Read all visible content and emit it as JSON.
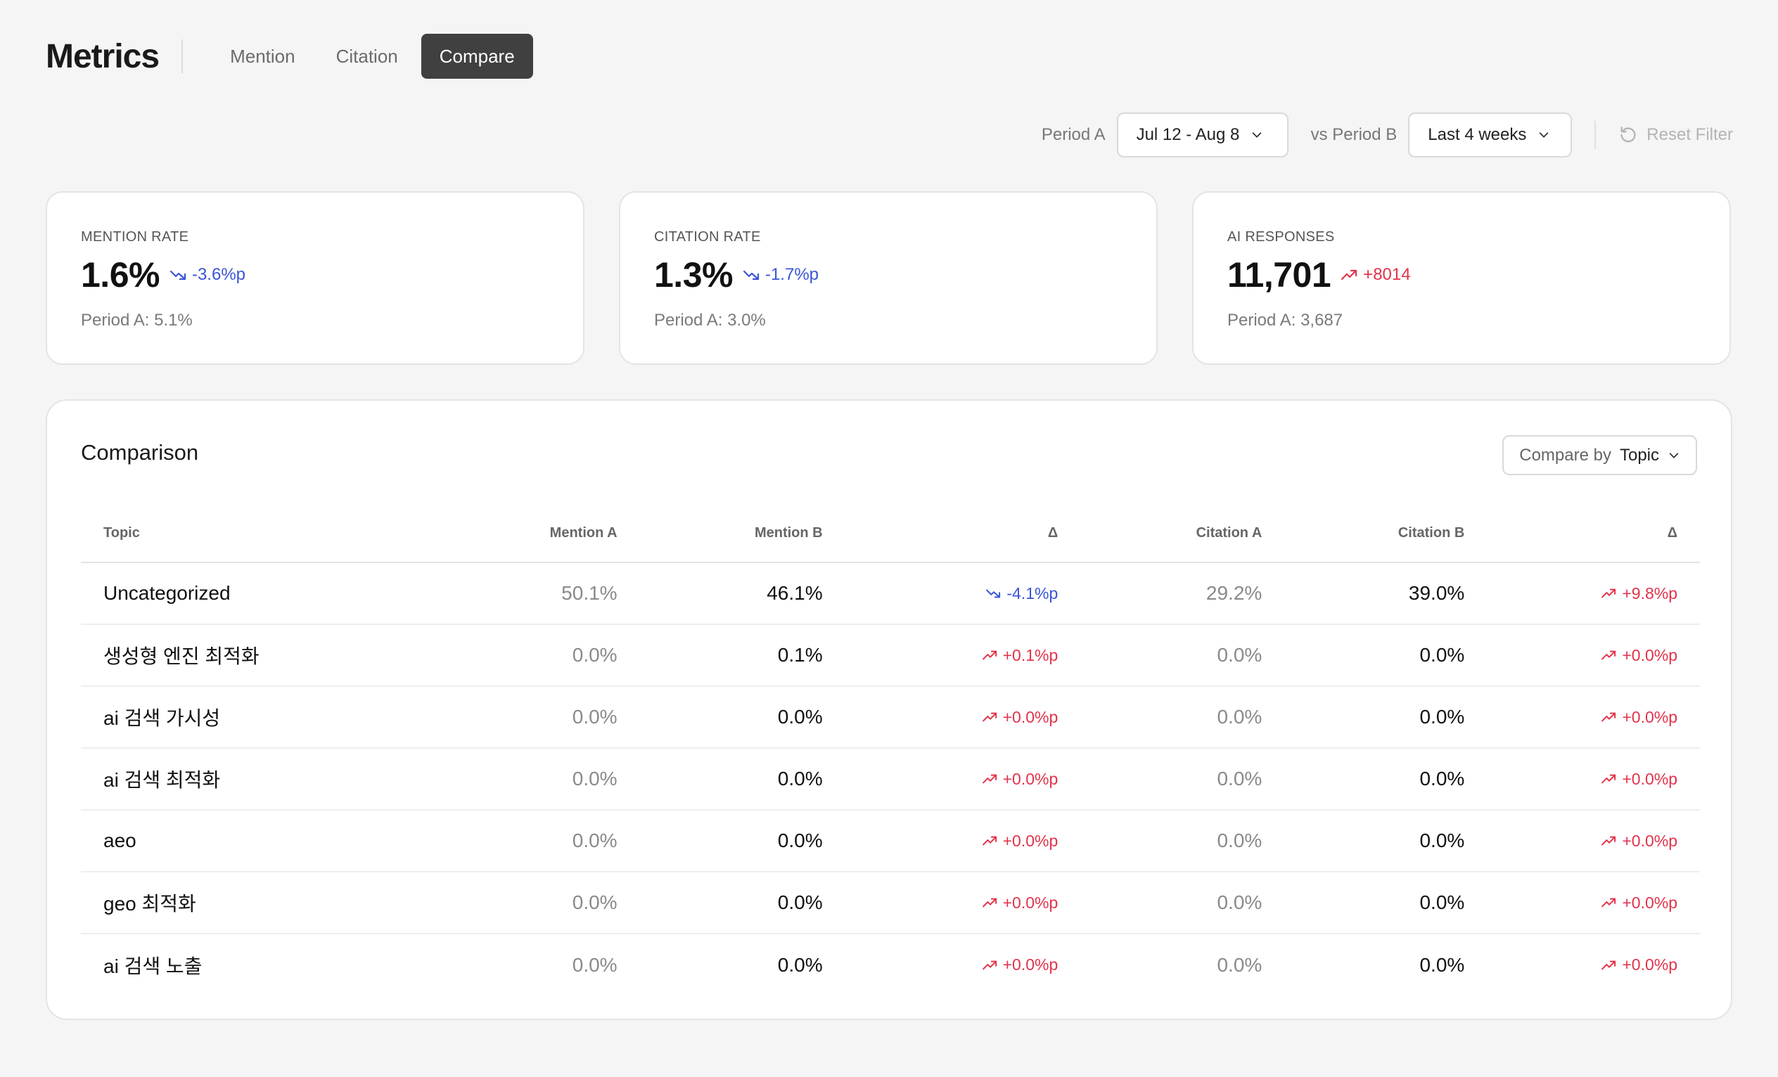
{
  "header": {
    "title": "Metrics",
    "tabs": [
      {
        "label": "Mention",
        "active": false
      },
      {
        "label": "Citation",
        "active": false
      },
      {
        "label": "Compare",
        "active": true
      }
    ]
  },
  "filters": {
    "period_a_label": "Period A",
    "period_a_value": "Jul 12 - Aug 8",
    "period_b_label": "vs Period B",
    "period_b_value": "Last 4 weeks",
    "reset_label": "Reset Filter"
  },
  "kpis": [
    {
      "label": "MENTION RATE",
      "value": "1.6%",
      "delta": "-3.6%p",
      "direction": "down",
      "sub": "Period A: 5.1%"
    },
    {
      "label": "CITATION RATE",
      "value": "1.3%",
      "delta": "-1.7%p",
      "direction": "down",
      "sub": "Period A: 3.0%"
    },
    {
      "label": "AI RESPONSES",
      "value": "11,701",
      "delta": "+8014",
      "direction": "up",
      "sub": "Period A: 3,687"
    }
  ],
  "comparison": {
    "title": "Comparison",
    "compare_by_label": "Compare by",
    "compare_by_value": "Topic",
    "columns": [
      "Topic",
      "Mention A",
      "Mention B",
      "Δ",
      "Citation A",
      "Citation B",
      "Δ"
    ],
    "rows": [
      {
        "topic": "Uncategorized",
        "mention_a": "50.1%",
        "mention_b": "46.1%",
        "mention_delta": "-4.1%p",
        "mention_dir": "down",
        "citation_a": "29.2%",
        "citation_b": "39.0%",
        "citation_delta": "+9.8%p",
        "citation_dir": "up"
      },
      {
        "topic": "생성형 엔진 최적화",
        "mention_a": "0.0%",
        "mention_b": "0.1%",
        "mention_delta": "+0.1%p",
        "mention_dir": "up",
        "citation_a": "0.0%",
        "citation_b": "0.0%",
        "citation_delta": "+0.0%p",
        "citation_dir": "up"
      },
      {
        "topic": "ai 검색 가시성",
        "mention_a": "0.0%",
        "mention_b": "0.0%",
        "mention_delta": "+0.0%p",
        "mention_dir": "up",
        "citation_a": "0.0%",
        "citation_b": "0.0%",
        "citation_delta": "+0.0%p",
        "citation_dir": "up"
      },
      {
        "topic": "ai 검색 최적화",
        "mention_a": "0.0%",
        "mention_b": "0.0%",
        "mention_delta": "+0.0%p",
        "mention_dir": "up",
        "citation_a": "0.0%",
        "citation_b": "0.0%",
        "citation_delta": "+0.0%p",
        "citation_dir": "up"
      },
      {
        "topic": "aeo",
        "mention_a": "0.0%",
        "mention_b": "0.0%",
        "mention_delta": "+0.0%p",
        "mention_dir": "up",
        "citation_a": "0.0%",
        "citation_b": "0.0%",
        "citation_delta": "+0.0%p",
        "citation_dir": "up"
      },
      {
        "topic": "geo 최적화",
        "mention_a": "0.0%",
        "mention_b": "0.0%",
        "mention_delta": "+0.0%p",
        "mention_dir": "up",
        "citation_a": "0.0%",
        "citation_b": "0.0%",
        "citation_delta": "+0.0%p",
        "citation_dir": "up"
      },
      {
        "topic": "ai 검색 노출",
        "mention_a": "0.0%",
        "mention_b": "0.0%",
        "mention_delta": "+0.0%p",
        "mention_dir": "up",
        "citation_a": "0.0%",
        "citation_b": "0.0%",
        "citation_delta": "+0.0%p",
        "citation_dir": "up"
      }
    ]
  },
  "icons": {
    "trend_down": "trend-down-icon",
    "trend_up": "trend-up-icon",
    "chevron": "chevron-down-icon",
    "reset": "reset-icon"
  },
  "colors": {
    "down": "#3a55d6",
    "up": "#e2334b",
    "active_tab": "#404040"
  }
}
